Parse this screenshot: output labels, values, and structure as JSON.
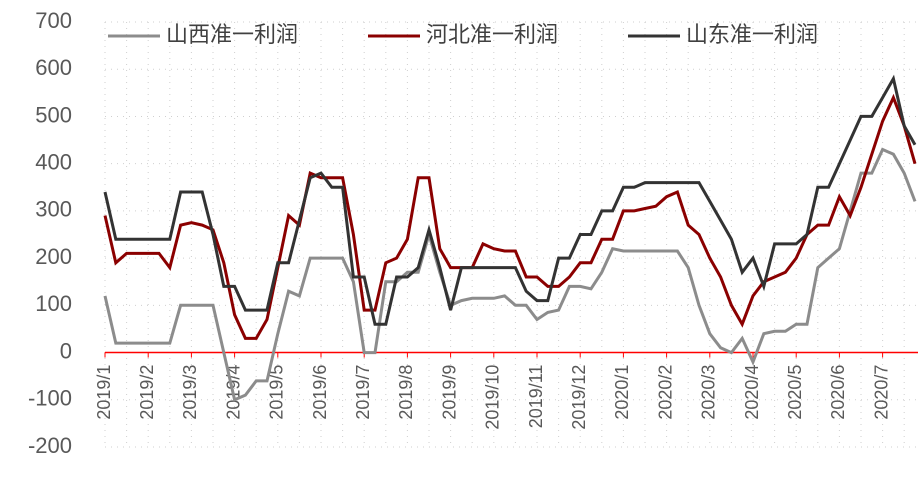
{
  "chart_data": {
    "type": "line",
    "categories": [
      "2019/1",
      null,
      null,
      null,
      "2019/2",
      null,
      null,
      null,
      "2019/3",
      null,
      null,
      null,
      "2019/4",
      null,
      null,
      null,
      "2019/5",
      null,
      null,
      null,
      "2019/6",
      null,
      null,
      null,
      "2019/7",
      null,
      null,
      null,
      "2019/8",
      null,
      null,
      null,
      "2019/9",
      null,
      null,
      null,
      "2019/10",
      null,
      null,
      null,
      "2019/11",
      null,
      null,
      null,
      "2019/12",
      null,
      null,
      null,
      "2020/1",
      null,
      null,
      null,
      "2020/2",
      null,
      null,
      null,
      "2020/3",
      null,
      null,
      null,
      "2020/4",
      null,
      null,
      null,
      "2020/5",
      null,
      null,
      null,
      "2020/6",
      null,
      null,
      null,
      "2020/7",
      null,
      null,
      null
    ],
    "series": [
      {
        "name": "山西准一利润",
        "color": "#8c8c8c",
        "values": [
          120,
          20,
          20,
          20,
          20,
          20,
          20,
          100,
          100,
          100,
          100,
          0,
          -100,
          -90,
          -60,
          -60,
          40,
          130,
          120,
          200,
          200,
          200,
          200,
          150,
          0,
          0,
          150,
          150,
          170,
          170,
          250,
          170,
          100,
          110,
          115,
          115,
          115,
          120,
          100,
          100,
          70,
          85,
          90,
          140,
          140,
          135,
          170,
          220,
          215,
          215,
          215,
          215,
          215,
          215,
          180,
          100,
          40,
          10,
          0,
          30,
          -20,
          40,
          45,
          45,
          60,
          60,
          180,
          200,
          220,
          300,
          380,
          380,
          430,
          420,
          380,
          320
        ]
      },
      {
        "name": "河北准一利润",
        "color": "#8b0000",
        "values": [
          290,
          190,
          210,
          210,
          210,
          210,
          180,
          270,
          275,
          270,
          260,
          190,
          80,
          30,
          30,
          70,
          180,
          290,
          270,
          380,
          370,
          370,
          370,
          250,
          90,
          90,
          190,
          200,
          240,
          370,
          370,
          220,
          180,
          180,
          180,
          230,
          220,
          215,
          215,
          160,
          160,
          140,
          140,
          160,
          190,
          190,
          240,
          240,
          300,
          300,
          305,
          310,
          330,
          340,
          270,
          250,
          200,
          160,
          100,
          60,
          120,
          150,
          160,
          170,
          200,
          250,
          270,
          270,
          330,
          290,
          350,
          420,
          490,
          540,
          480,
          400
        ]
      },
      {
        "name": "山东准一利润",
        "color": "#333333",
        "values": [
          340,
          240,
          240,
          240,
          240,
          240,
          240,
          340,
          340,
          340,
          250,
          140,
          140,
          90,
          90,
          90,
          190,
          190,
          280,
          370,
          380,
          350,
          350,
          160,
          160,
          60,
          60,
          160,
          160,
          180,
          260,
          180,
          90,
          180,
          180,
          180,
          180,
          180,
          180,
          130,
          110,
          110,
          200,
          200,
          250,
          250,
          300,
          300,
          350,
          350,
          360,
          360,
          360,
          360,
          360,
          360,
          320,
          280,
          240,
          170,
          200,
          140,
          230,
          230,
          230,
          250,
          350,
          350,
          400,
          450,
          500,
          500,
          540,
          580,
          480,
          440
        ]
      }
    ],
    "ylim": [
      -200,
      700
    ],
    "yticks": [
      -200,
      -100,
      0,
      100,
      200,
      300,
      400,
      500,
      600,
      700
    ],
    "grid": true,
    "zero_line_color": "#ff0000"
  }
}
